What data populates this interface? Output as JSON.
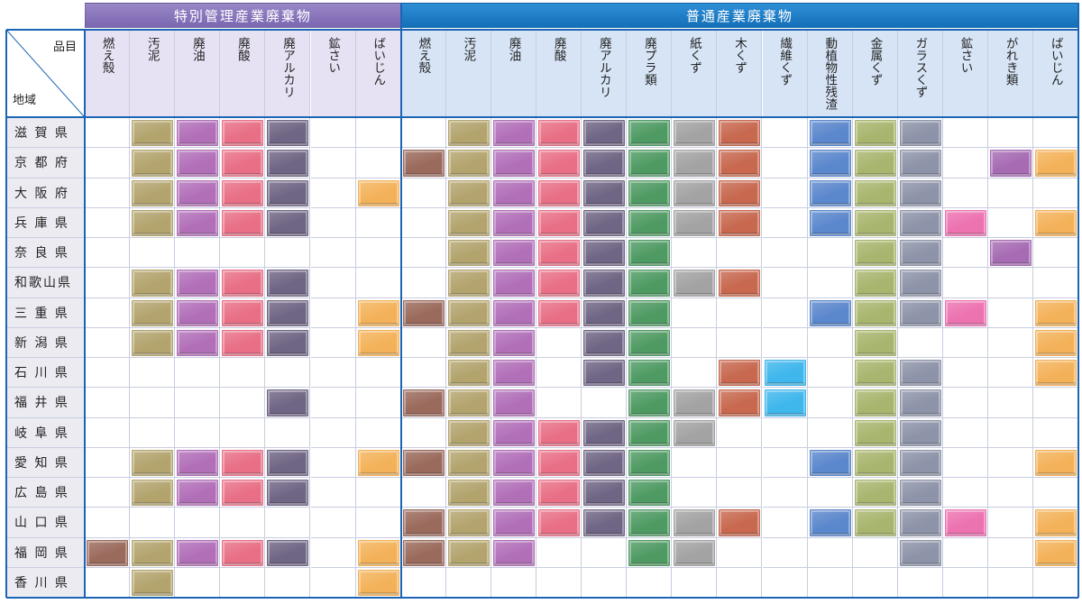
{
  "corner": {
    "column_label": "品目",
    "row_label": "地域"
  },
  "groups": [
    {
      "label": "特別管理産業廃棄物",
      "span": 7
    },
    {
      "label": "普通産業廃棄物",
      "span": 15
    }
  ],
  "columns": [
    {
      "label": "燃え殻",
      "group": 0,
      "color": "#9a6a5c"
    },
    {
      "label": "汚泥",
      "group": 0,
      "color": "#b3a46e"
    },
    {
      "label": "廃油",
      "group": 0,
      "color": "#b16fb8"
    },
    {
      "label": "廃酸",
      "group": 0,
      "color": "#e86f86"
    },
    {
      "label": "廃アルカリ",
      "group": 0,
      "color": "#6f6584"
    },
    {
      "label": "鉱さい",
      "group": 0,
      "color": "#d9b8cf"
    },
    {
      "label": "ばいじん",
      "group": 0,
      "color": "#f3b25a"
    },
    {
      "label": "燃え殻",
      "group": 1,
      "color": "#9a6a5c"
    },
    {
      "label": "汚泥",
      "group": 1,
      "color": "#b3a46e"
    },
    {
      "label": "廃油",
      "group": 1,
      "color": "#b16fb8"
    },
    {
      "label": "廃酸",
      "group": 1,
      "color": "#e86f86"
    },
    {
      "label": "廃アルカリ",
      "group": 1,
      "color": "#6f6584"
    },
    {
      "label": "廃プラ類",
      "group": 1,
      "color": "#4f9a63"
    },
    {
      "label": "紙くず",
      "group": 1,
      "color": "#a3a3a3"
    },
    {
      "label": "木くず",
      "group": 1,
      "color": "#c7684f"
    },
    {
      "label": "繊維くず",
      "group": 1,
      "color": "#3fb6ec"
    },
    {
      "label": "動植物性残渣",
      "group": 1,
      "color": "#5b87cc"
    },
    {
      "label": "金属くず",
      "group": 1,
      "color": "#a8b56e"
    },
    {
      "label": "ガラスくず",
      "group": 1,
      "color": "#8d93a8"
    },
    {
      "label": "鉱さい",
      "group": 1,
      "color": "#ec72b0"
    },
    {
      "label": "がれき類",
      "group": 1,
      "color": "#a66bb3"
    },
    {
      "label": "ばいじん",
      "group": 1,
      "color": "#f3b25a"
    }
  ],
  "rows": [
    {
      "region": "滋 賀 県",
      "cells": [
        0,
        1,
        1,
        1,
        1,
        0,
        0,
        0,
        1,
        1,
        1,
        1,
        1,
        1,
        1,
        0,
        1,
        1,
        1,
        0,
        0,
        0
      ]
    },
    {
      "region": "京 都 府",
      "cells": [
        0,
        1,
        1,
        1,
        1,
        0,
        0,
        1,
        1,
        1,
        1,
        1,
        1,
        1,
        1,
        0,
        1,
        1,
        1,
        0,
        1,
        1
      ]
    },
    {
      "region": "大 阪 府",
      "cells": [
        0,
        1,
        1,
        1,
        1,
        0,
        1,
        0,
        1,
        1,
        1,
        1,
        1,
        1,
        1,
        0,
        1,
        1,
        1,
        0,
        0,
        0
      ]
    },
    {
      "region": "兵 庫 県",
      "cells": [
        0,
        1,
        1,
        1,
        1,
        0,
        0,
        0,
        1,
        1,
        1,
        1,
        1,
        1,
        1,
        0,
        1,
        1,
        1,
        1,
        0,
        1
      ]
    },
    {
      "region": "奈 良 県",
      "cells": [
        0,
        0,
        0,
        0,
        0,
        0,
        0,
        0,
        1,
        1,
        1,
        1,
        1,
        0,
        0,
        0,
        0,
        1,
        1,
        0,
        1,
        0
      ]
    },
    {
      "region": "和歌山県",
      "cells": [
        0,
        1,
        1,
        1,
        1,
        0,
        0,
        0,
        1,
        1,
        1,
        1,
        1,
        1,
        1,
        0,
        0,
        1,
        1,
        0,
        0,
        0
      ]
    },
    {
      "region": "三 重 県",
      "cells": [
        0,
        1,
        1,
        1,
        1,
        0,
        1,
        1,
        1,
        1,
        1,
        1,
        1,
        0,
        0,
        0,
        1,
        1,
        1,
        1,
        0,
        1
      ]
    },
    {
      "region": "新 潟 県",
      "cells": [
        0,
        1,
        1,
        1,
        1,
        0,
        1,
        0,
        1,
        1,
        0,
        1,
        1,
        0,
        0,
        0,
        0,
        1,
        0,
        0,
        0,
        1
      ]
    },
    {
      "region": "石 川 県",
      "cells": [
        0,
        0,
        0,
        0,
        0,
        0,
        0,
        0,
        1,
        1,
        0,
        1,
        1,
        0,
        1,
        1,
        0,
        1,
        1,
        0,
        0,
        1
      ]
    },
    {
      "region": "福 井 県",
      "cells": [
        0,
        0,
        0,
        0,
        1,
        0,
        0,
        1,
        1,
        1,
        0,
        0,
        1,
        1,
        1,
        1,
        0,
        1,
        1,
        0,
        0,
        0
      ]
    },
    {
      "region": "岐 阜 県",
      "cells": [
        0,
        0,
        0,
        0,
        0,
        0,
        0,
        0,
        1,
        1,
        1,
        1,
        1,
        1,
        0,
        0,
        0,
        1,
        1,
        0,
        0,
        0
      ]
    },
    {
      "region": "愛 知 県",
      "cells": [
        0,
        1,
        1,
        1,
        1,
        0,
        1,
        1,
        1,
        1,
        1,
        1,
        1,
        0,
        0,
        0,
        1,
        1,
        1,
        0,
        0,
        1
      ]
    },
    {
      "region": "広 島 県",
      "cells": [
        0,
        1,
        1,
        1,
        1,
        0,
        0,
        0,
        1,
        1,
        1,
        1,
        1,
        0,
        0,
        0,
        0,
        1,
        1,
        0,
        0,
        0
      ]
    },
    {
      "region": "山 口 県",
      "cells": [
        0,
        0,
        0,
        0,
        0,
        0,
        0,
        1,
        1,
        1,
        1,
        1,
        1,
        1,
        1,
        0,
        1,
        1,
        1,
        1,
        0,
        1
      ]
    },
    {
      "region": "福 岡 県",
      "cells": [
        1,
        1,
        1,
        1,
        1,
        0,
        1,
        1,
        1,
        1,
        0,
        0,
        1,
        1,
        0,
        0,
        0,
        0,
        1,
        0,
        0,
        1
      ]
    },
    {
      "region": "香 川 県",
      "cells": [
        0,
        1,
        0,
        0,
        0,
        0,
        1,
        0,
        0,
        0,
        0,
        0,
        0,
        0,
        0,
        0,
        0,
        0,
        0,
        0,
        0,
        0
      ]
    }
  ]
}
